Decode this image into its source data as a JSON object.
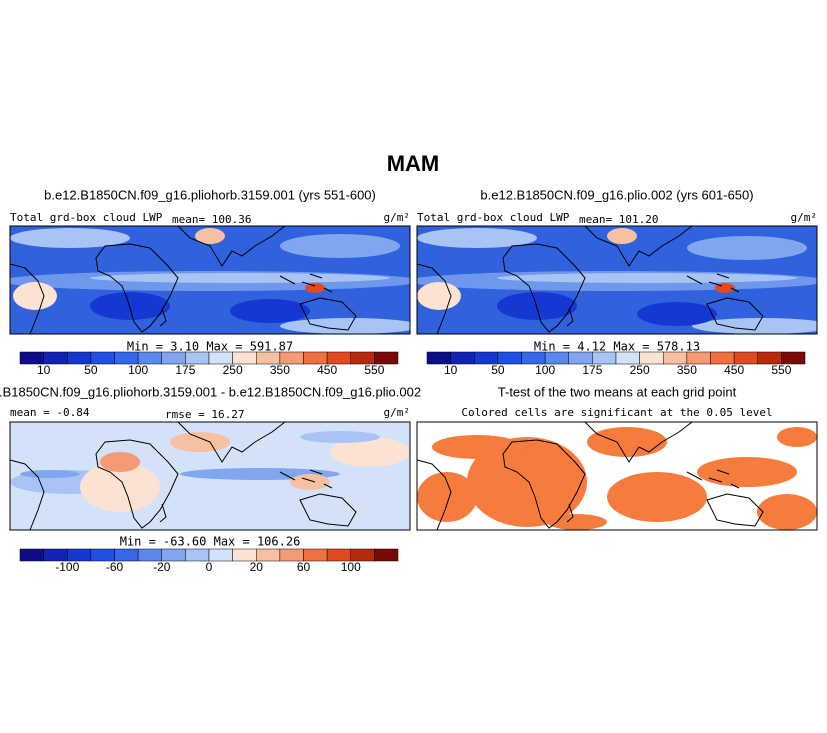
{
  "title": "MAM",
  "panels": [
    {
      "title": "b.e12.B1850CN.f09_g16.pliohorb.3159.001 (yrs 551-600)",
      "left_label": "Total grd-box cloud LWP",
      "center_label": "mean= 100.36",
      "units": "g/m²",
      "stats": "Min =    3.10  Max = 591.87",
      "colorbar": {
        "colors": [
          "#0d0d8a",
          "#0f24b4",
          "#1538d2",
          "#2050e6",
          "#3568ea",
          "#5a88ec",
          "#80a6f0",
          "#a8c4f4",
          "#d3e2f8",
          "#fbe2d2",
          "#f8c0a2",
          "#f59a72",
          "#ef7040",
          "#e04a1e",
          "#b82a0e",
          "#7a0a04"
        ],
        "labels": [
          "10",
          null,
          "50",
          null,
          "100",
          null,
          "175",
          null,
          "250",
          null,
          "350",
          null,
          "450",
          null,
          "550"
        ]
      }
    },
    {
      "title": "b.e12.B1850CN.f09_g16.plio.002 (yrs 601-650)",
      "left_label": "Total grd-box cloud LWP",
      "center_label": "mean= 101.20",
      "units": "g/m²",
      "stats": "Min =    4.12  Max = 578.13",
      "colorbar": {
        "colors": [
          "#0d0d8a",
          "#0f24b4",
          "#1538d2",
          "#2050e6",
          "#3568ea",
          "#5a88ec",
          "#80a6f0",
          "#a8c4f4",
          "#d3e2f8",
          "#fbe2d2",
          "#f8c0a2",
          "#f59a72",
          "#ef7040",
          "#e04a1e",
          "#b82a0e",
          "#7a0a04"
        ],
        "labels": [
          "10",
          null,
          "50",
          null,
          "100",
          null,
          "175",
          null,
          "250",
          null,
          "350",
          null,
          "450",
          null,
          "550"
        ]
      }
    },
    {
      "title": ".B1850CN.f09_g16.pliohorb.3159.001 - b.e12.B1850CN.f09_g16.plio.002",
      "left_label": "mean =  -0.84",
      "center_label": "rmse =  16.27",
      "units": "g/m²",
      "stats": "Min = -63.60  Max = 106.26",
      "colorbar": {
        "colors": [
          "#0d0d8a",
          "#0f24b4",
          "#1538d2",
          "#2050e6",
          "#3568ea",
          "#5a88ec",
          "#80a6f0",
          "#a8c4f4",
          "#d3e2f8",
          "#fbe2d2",
          "#f8c0a2",
          "#f59a72",
          "#ef7040",
          "#e04a1e",
          "#b82a0e",
          "#7a0a04"
        ],
        "labels": [
          null,
          "-100",
          null,
          "-60",
          null,
          "-20",
          null,
          "0",
          null,
          "20",
          null,
          "60",
          null,
          "100",
          null
        ]
      }
    },
    {
      "title": "T-test of the two means at each grid point",
      "left_label": "Colored cells are significant at the 0.05 level"
    }
  ]
}
